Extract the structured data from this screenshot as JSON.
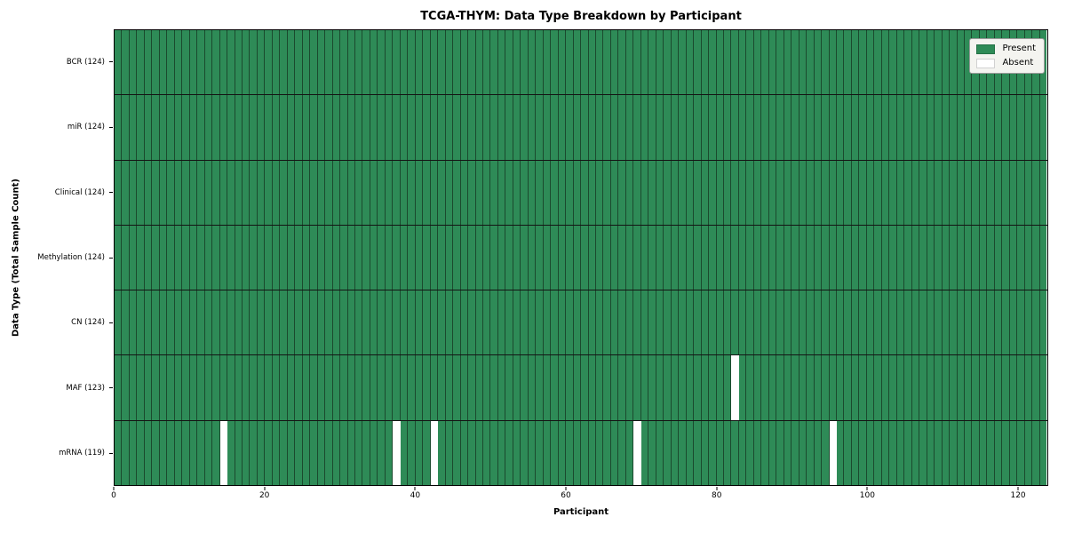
{
  "chart_data": {
    "type": "heatmap",
    "title": "TCGA-THYM: Data Type Breakdown by Participant",
    "xlabel": "Participant",
    "ylabel": "Data Type (Total Sample Count)",
    "xlim": [
      0,
      124
    ],
    "x_ticks": [
      0,
      20,
      40,
      60,
      80,
      100,
      120
    ],
    "n_participants": 124,
    "grid": false,
    "legend_position": "upper right",
    "legend": [
      {
        "label": "Present",
        "color": "#2e8b57"
      },
      {
        "label": "Absent",
        "color": "#ffffff"
      }
    ],
    "rows": [
      {
        "label": "BCR (124)",
        "data_type": "BCR",
        "present_count": 124,
        "absent_participants": []
      },
      {
        "label": "miR (124)",
        "data_type": "miR",
        "present_count": 124,
        "absent_participants": []
      },
      {
        "label": "Clinical (124)",
        "data_type": "Clinical",
        "present_count": 124,
        "absent_participants": []
      },
      {
        "label": "Methylation (124)",
        "data_type": "Methylation",
        "present_count": 124,
        "absent_participants": []
      },
      {
        "label": "CN (124)",
        "data_type": "CN",
        "present_count": 124,
        "absent_participants": []
      },
      {
        "label": "MAF (123)",
        "data_type": "MAF",
        "present_count": 123,
        "absent_participants": [
          82
        ]
      },
      {
        "label": "mRNA (119)",
        "data_type": "mRNA",
        "present_count": 119,
        "absent_participants": [
          14,
          37,
          42,
          69,
          95
        ]
      }
    ],
    "colors": {
      "present": "#2e8b57",
      "absent": "#ffffff",
      "bar_edge": "#1b4a2e",
      "row_divider": "#141414",
      "axis": "#000000",
      "legend_bg": "#f4f4f0",
      "legend_border": "#9a9a9a"
    }
  }
}
